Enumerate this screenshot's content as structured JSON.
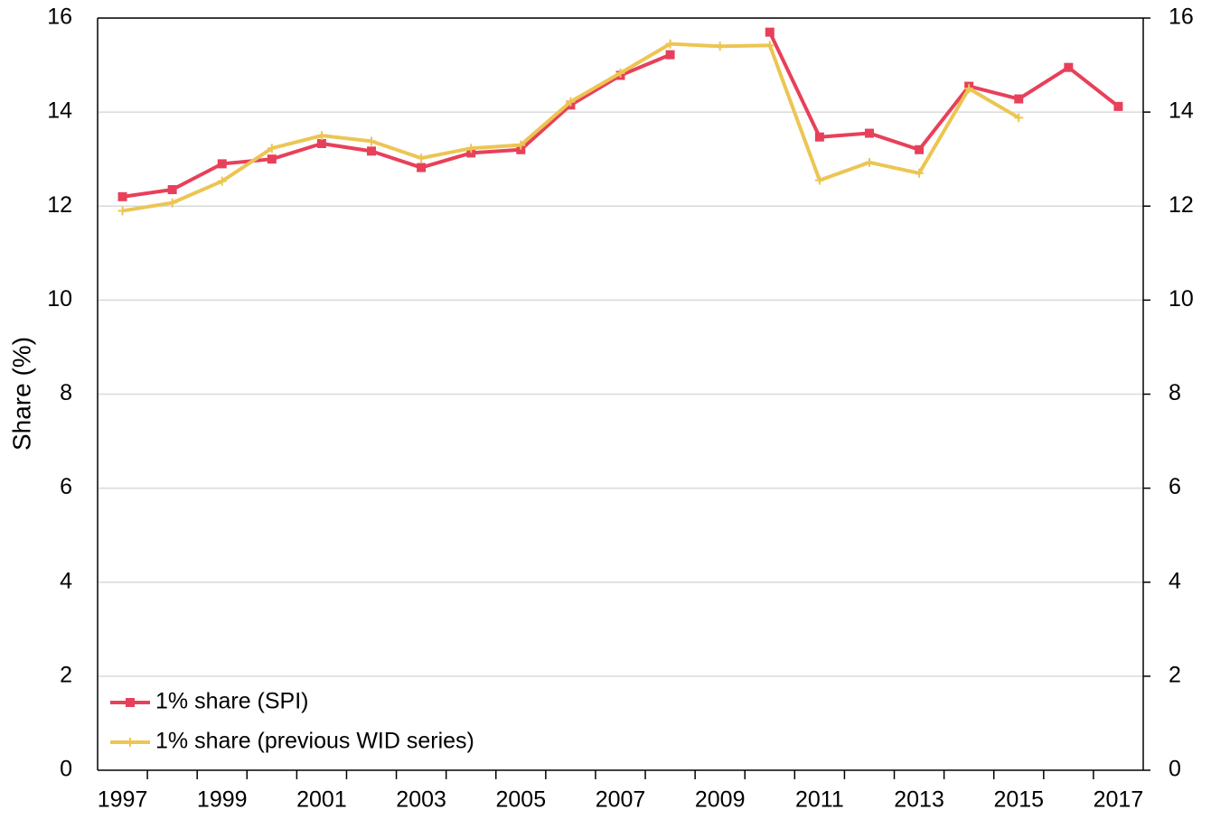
{
  "chart_data": {
    "type": "line",
    "y_label": "Share (%)",
    "categories": [
      "1997",
      null,
      "1999",
      null,
      "2001",
      null,
      "2003",
      null,
      "2005",
      null,
      "2007",
      null,
      "2009",
      null,
      "2011",
      null,
      "2013",
      null,
      "2015",
      null,
      "2017"
    ],
    "series": [
      {
        "name": "1% share (SPI)",
        "color": "#e8405a",
        "marker": "square",
        "values": [
          12.2,
          12.35,
          12.9,
          13.0,
          13.33,
          13.17,
          12.82,
          13.13,
          13.2,
          14.15,
          14.78,
          15.22,
          null,
          15.7,
          13.47,
          13.55,
          13.2,
          14.55,
          14.28,
          14.95,
          14.12
        ]
      },
      {
        "name": "1% share (previous WID series)",
        "color": "#ecc553",
        "marker": "plus",
        "values": [
          11.9,
          12.07,
          12.53,
          13.23,
          13.5,
          13.38,
          13.02,
          13.23,
          13.3,
          14.22,
          14.83,
          15.45,
          15.4,
          15.42,
          12.55,
          12.93,
          12.7,
          14.5,
          13.88,
          null,
          null
        ]
      }
    ],
    "ylim": [
      0,
      16
    ],
    "yticks": [
      0,
      2,
      4,
      6,
      8,
      10,
      12,
      14,
      16
    ],
    "y2lim": [
      0,
      16
    ],
    "y2ticks": [
      0,
      2,
      4,
      6,
      8,
      10,
      12,
      14,
      16
    ],
    "grid": true,
    "legend": "lower left"
  }
}
